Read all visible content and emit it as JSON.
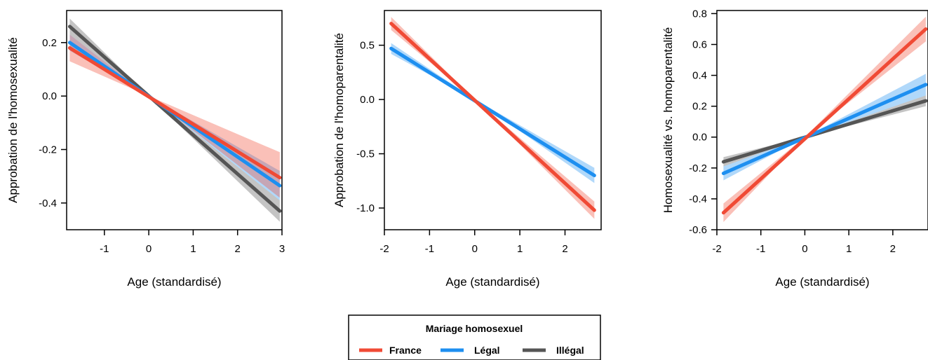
{
  "chart_data": [
    {
      "type": "line",
      "xlabel": "Age (standardisé)",
      "ylabel": "Approbation de l'homosexualité",
      "xlim": [
        -1.85,
        3.0
      ],
      "ylim": [
        -0.5,
        0.32
      ],
      "xticks": [
        -1,
        0,
        1,
        2,
        3
      ],
      "xtick_labels": [
        "-1",
        "0",
        "1",
        "2",
        "3"
      ],
      "yticks": [
        -0.4,
        -0.2,
        0.0,
        0.2
      ],
      "ytick_labels": [
        "-0.4",
        "-0.2",
        "0.0",
        "0.2"
      ],
      "series": [
        {
          "name": "Illégal",
          "x": [
            -1.78,
            2.95
          ],
          "y": [
            0.26,
            -0.43
          ],
          "ci_low": [
            0.23,
            -0.47
          ],
          "ci_high": [
            0.29,
            -0.39
          ]
        },
        {
          "name": "Légal",
          "x": [
            -1.78,
            2.95
          ],
          "y": [
            0.2,
            -0.335
          ],
          "ci_low": [
            0.17,
            -0.39
          ],
          "ci_high": [
            0.23,
            -0.28
          ]
        },
        {
          "name": "France",
          "x": [
            -1.78,
            2.95
          ],
          "y": [
            0.18,
            -0.305
          ],
          "ci_low": [
            0.13,
            -0.38
          ],
          "ci_high": [
            0.23,
            -0.21
          ]
        }
      ]
    },
    {
      "type": "line",
      "xlabel": "Age (standardisé)",
      "ylabel": "Approbation de l'homoparentalité",
      "xlim": [
        -2.0,
        2.8
      ],
      "ylim": [
        -1.2,
        0.82
      ],
      "xticks": [
        -2,
        -1,
        0,
        1,
        2
      ],
      "xtick_labels": [
        "-2",
        "-1",
        "0",
        "1",
        "2"
      ],
      "yticks": [
        -1.0,
        -0.5,
        0.0,
        0.5
      ],
      "ytick_labels": [
        "-1.0",
        "-0.5",
        "0.0",
        "0.5"
      ],
      "series": [
        {
          "name": "Légal",
          "x": [
            -1.85,
            2.65
          ],
          "y": [
            0.47,
            -0.7
          ],
          "ci_low": [
            0.42,
            -0.77
          ],
          "ci_high": [
            0.52,
            -0.63
          ]
        },
        {
          "name": "France",
          "x": [
            -1.85,
            2.65
          ],
          "y": [
            0.7,
            -1.02
          ],
          "ci_low": [
            0.64,
            -1.1
          ],
          "ci_high": [
            0.76,
            -0.94
          ]
        }
      ]
    },
    {
      "type": "line",
      "xlabel": "Age (standardisé)",
      "ylabel": "Homosexualité vs. homoparentalité",
      "xlim": [
        -2.0,
        2.8
      ],
      "ylim": [
        -0.6,
        0.82
      ],
      "xticks": [
        -2,
        -1,
        0,
        1,
        2
      ],
      "xtick_labels": [
        "-2",
        "-1",
        "0",
        "1",
        "2"
      ],
      "yticks": [
        -0.6,
        -0.4,
        -0.2,
        0.0,
        0.2,
        0.4,
        0.6,
        0.8
      ],
      "ytick_labels": [
        "-0.6",
        "-0.4",
        "-0.2",
        "0.0",
        "0.2",
        "0.4",
        "0.6",
        "0.8"
      ],
      "series": [
        {
          "name": "Illégal",
          "x": [
            -1.85,
            2.75
          ],
          "y": [
            -0.16,
            0.235
          ],
          "ci_low": [
            -0.19,
            0.2
          ],
          "ci_high": [
            -0.13,
            0.27
          ]
        },
        {
          "name": "Légal",
          "x": [
            -1.85,
            2.75
          ],
          "y": [
            -0.235,
            0.34
          ],
          "ci_low": [
            -0.28,
            0.27
          ],
          "ci_high": [
            -0.19,
            0.41
          ]
        },
        {
          "name": "France",
          "x": [
            -1.85,
            2.75
          ],
          "y": [
            -0.49,
            0.7
          ],
          "ci_low": [
            -0.55,
            0.62
          ],
          "ci_high": [
            -0.43,
            0.78
          ]
        }
      ]
    }
  ],
  "legend": {
    "title": "Mariage homosexuel",
    "position": "bottom-center",
    "items": [
      {
        "label": "France",
        "color": "#f04a35"
      },
      {
        "label": "Légal",
        "color": "#1e8ff0"
      },
      {
        "label": "Illégal",
        "color": "#555555"
      }
    ]
  },
  "colors": {
    "France": "#f04a35",
    "Légal": "#1e8ff0",
    "Illégal": "#555555"
  }
}
